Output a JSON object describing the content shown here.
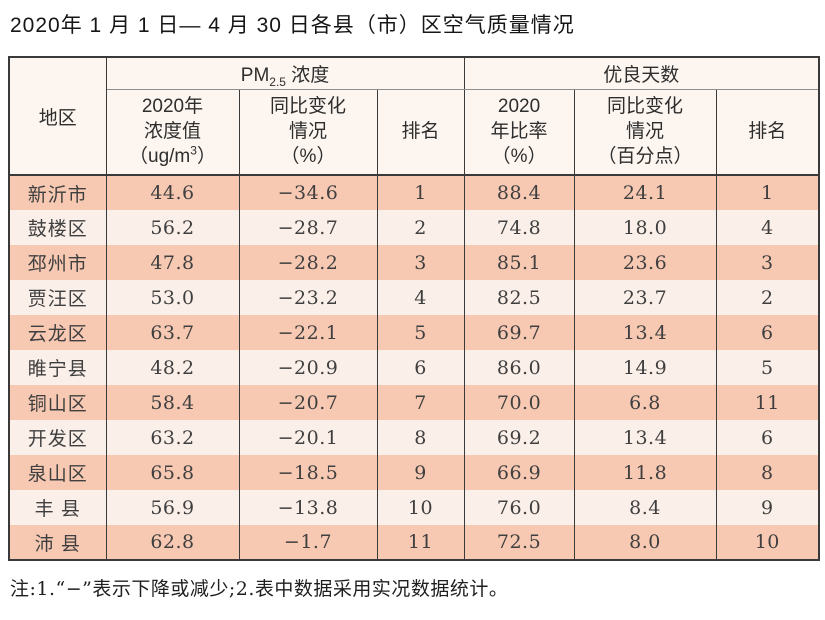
{
  "colors": {
    "row_odd": "#f7c9b3",
    "row_even": "#fbefe9",
    "header_bg": "#fdf5ef",
    "border": "#3a3a3a"
  },
  "chart_data": {
    "type": "table",
    "title": "2020年 1 月 1 日— 4 月 30 日各县（市）区空气质量情况",
    "header": {
      "region": "地区",
      "pm_group": {
        "prefix": "PM",
        "sub": "2.5",
        "suffix": " 浓度"
      },
      "days_group": "优良天数",
      "pm_value": {
        "line1": "2020年",
        "line2": "浓度值",
        "line3_pre": "（ug/m",
        "line3_sup": "3",
        "line3_post": "）"
      },
      "pm_change": {
        "line1": "同比变化",
        "line2": "情况",
        "line3": "（%）"
      },
      "pm_rank": "排名",
      "days_rate": {
        "line1": "2020",
        "line2": "年比率",
        "line3": "（%）"
      },
      "days_change": {
        "line1": "同比变化",
        "line2": "情况",
        "line3": "（百分点）"
      },
      "days_rank": "排名"
    },
    "columns": [
      "地区",
      "2020年浓度值（ug/m3）",
      "同比变化情况（%）",
      "排名",
      "2020年比率（%）",
      "同比变化情况（百分点）",
      "排名"
    ],
    "rows": [
      [
        "新沂市",
        "44.6",
        "−34.6",
        "1",
        "88.4",
        "24.1",
        "1"
      ],
      [
        "鼓楼区",
        "56.2",
        "−28.7",
        "2",
        "74.8",
        "18.0",
        "4"
      ],
      [
        "邳州市",
        "47.8",
        "−28.2",
        "3",
        "85.1",
        "23.6",
        "3"
      ],
      [
        "贾汪区",
        "53.0",
        "−23.2",
        "4",
        "82.5",
        "23.7",
        "2"
      ],
      [
        "云龙区",
        "63.7",
        "−22.1",
        "5",
        "69.7",
        "13.4",
        "6"
      ],
      [
        "睢宁县",
        "48.2",
        "−20.9",
        "6",
        "86.0",
        "14.9",
        "5"
      ],
      [
        "铜山区",
        "58.4",
        "−20.7",
        "7",
        "70.0",
        "6.8",
        "11"
      ],
      [
        "开发区",
        "63.2",
        "−20.1",
        "8",
        "69.2",
        "13.4",
        "6"
      ],
      [
        "泉山区",
        "65.8",
        "−18.5",
        "9",
        "66.9",
        "11.8",
        "8"
      ],
      [
        "丰 县",
        "56.9",
        "−13.8",
        "10",
        "76.0",
        "8.4",
        "9"
      ],
      [
        "沛 县",
        "62.8",
        "−1.7",
        "11",
        "72.5",
        "8.0",
        "10"
      ]
    ],
    "note": "注:1.“−”表示下降或减少;2.表中数据采用实况数据统计。"
  }
}
